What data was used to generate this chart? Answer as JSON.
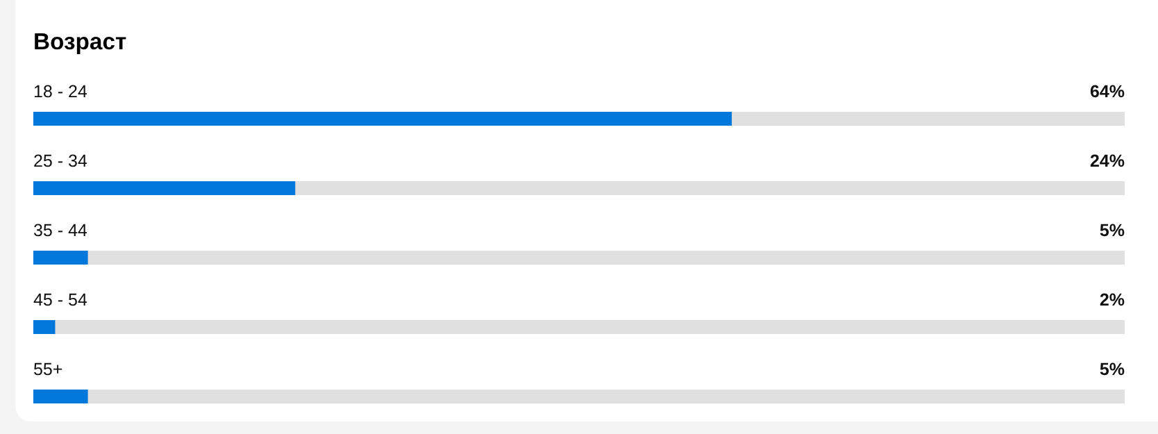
{
  "chart_data": {
    "type": "bar",
    "title": "Возраст",
    "orientation": "horizontal",
    "categories": [
      "18 - 24",
      "25 - 34",
      "35 - 44",
      "45 - 54",
      "55+"
    ],
    "values": [
      64,
      24,
      5,
      2,
      5
    ],
    "value_labels": [
      "64%",
      "24%",
      "5%",
      "2%",
      "5%"
    ],
    "color": "#0077db",
    "xlim": [
      0,
      100
    ],
    "tick_labels": "y"
  }
}
